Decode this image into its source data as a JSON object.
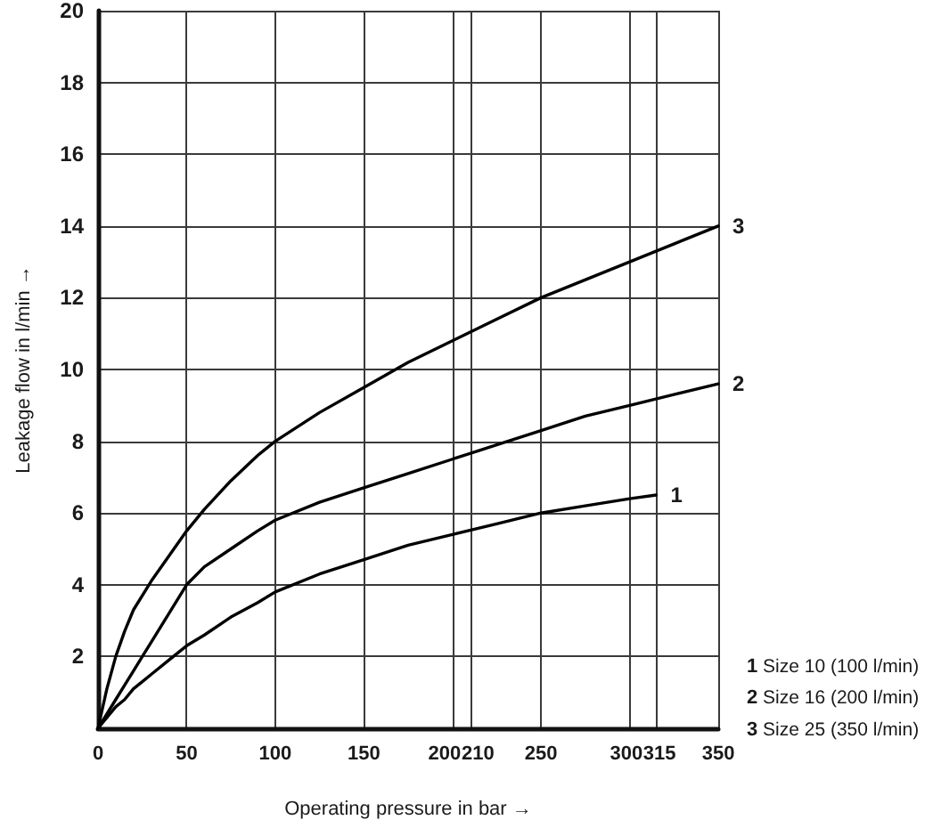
{
  "chart_data": {
    "type": "line",
    "xlabel": "Operating pressure in bar →",
    "ylabel": "Leakage flow in l/min →",
    "xlim": [
      0,
      350
    ],
    "xticks": [
      0,
      50,
      100,
      150,
      200,
      210,
      250,
      300,
      315,
      350
    ],
    "ylim": [
      0,
      20
    ],
    "yticks": [
      2,
      4,
      6,
      8,
      10,
      12,
      14,
      16,
      18,
      20
    ],
    "grid": true,
    "legend": false,
    "marker": "none",
    "line_style": "solid",
    "series": [
      {
        "name": "1",
        "color": "#000000",
        "x": [
          0,
          5,
          10,
          15,
          20,
          25,
          30,
          40,
          50,
          60,
          75,
          90,
          100,
          125,
          150,
          175,
          200,
          225,
          250,
          275,
          300,
          315
        ],
        "values": [
          0,
          0.3,
          0.6,
          0.8,
          1.1,
          1.3,
          1.5,
          1.9,
          2.3,
          2.6,
          3.1,
          3.5,
          3.8,
          4.3,
          4.7,
          5.1,
          5.4,
          5.7,
          6.0,
          6.2,
          6.4,
          6.5
        ]
      },
      {
        "name": "2",
        "color": "#000000",
        "x": [
          0,
          5,
          10,
          15,
          20,
          25,
          30,
          40,
          50,
          60,
          75,
          90,
          100,
          125,
          150,
          175,
          200,
          225,
          250,
          275,
          300,
          325,
          350
        ],
        "values": [
          0,
          0.4,
          0.8,
          1.2,
          1.6,
          2.0,
          2.4,
          3.2,
          4.0,
          4.5,
          5.0,
          5.5,
          5.8,
          6.3,
          6.7,
          7.1,
          7.5,
          7.9,
          8.3,
          8.7,
          9.0,
          9.3,
          9.6
        ]
      },
      {
        "name": "3",
        "color": "#000000",
        "x": [
          0,
          5,
          10,
          15,
          20,
          30,
          40,
          50,
          60,
          75,
          90,
          100,
          125,
          150,
          175,
          200,
          225,
          250,
          300,
          350
        ],
        "values": [
          0,
          1.1,
          2.0,
          2.7,
          3.3,
          4.1,
          4.8,
          5.5,
          6.1,
          6.9,
          7.6,
          8.0,
          8.8,
          9.5,
          10.2,
          10.8,
          11.4,
          12.0,
          13.0,
          14.0
        ]
      }
    ],
    "annotations": [
      "1 Size 10 (100 l/min)",
      "2 Size 16 (200 l/min)",
      "3 Size 25 (350 l/min)"
    ]
  }
}
